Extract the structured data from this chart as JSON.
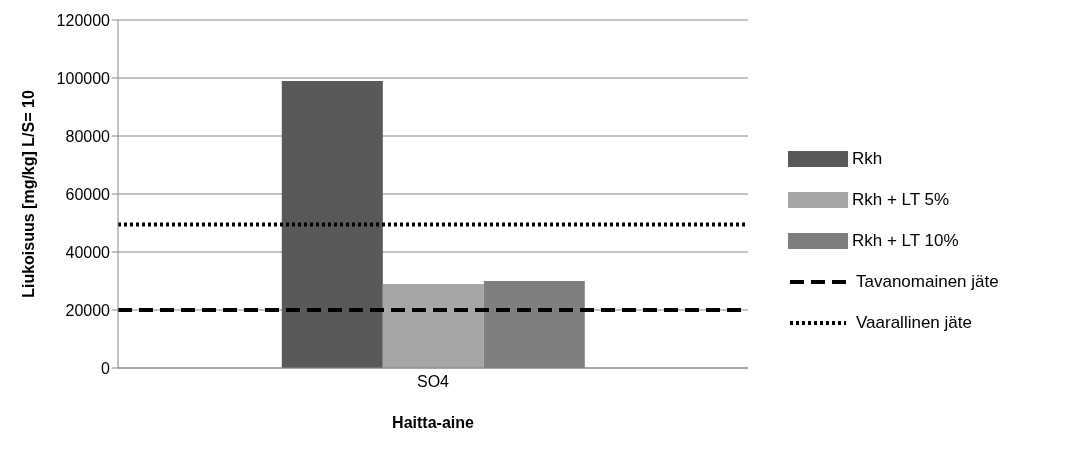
{
  "chart_data": {
    "type": "bar",
    "xlabel": "Haitta-aine",
    "ylabel": "Liukoisuus [mg/kg] L/S= 10",
    "categories": [
      "SO4"
    ],
    "series": [
      {
        "name": "Rkh",
        "color": "#595959",
        "values": [
          99000
        ]
      },
      {
        "name": "Rkh + LT 5%",
        "color": "#a6a6a6",
        "values": [
          29000
        ]
      },
      {
        "name": "Rkh + LT 10%",
        "color": "#7f7f7f",
        "values": [
          30000
        ]
      }
    ],
    "ref_lines": [
      {
        "axis": "y",
        "value": 20000,
        "label": "Tavanomainen jäte",
        "color": "#000000",
        "line_style": "dashed"
      },
      {
        "axis": "y",
        "value": 49500,
        "label": "Vaarallinen jäte",
        "color": "#000000",
        "line_style": "dotted"
      }
    ],
    "ylim": [
      0,
      120000
    ],
    "yticks": [
      0,
      20000,
      40000,
      60000,
      80000,
      100000,
      120000
    ],
    "grid": "y",
    "legend": "right"
  }
}
